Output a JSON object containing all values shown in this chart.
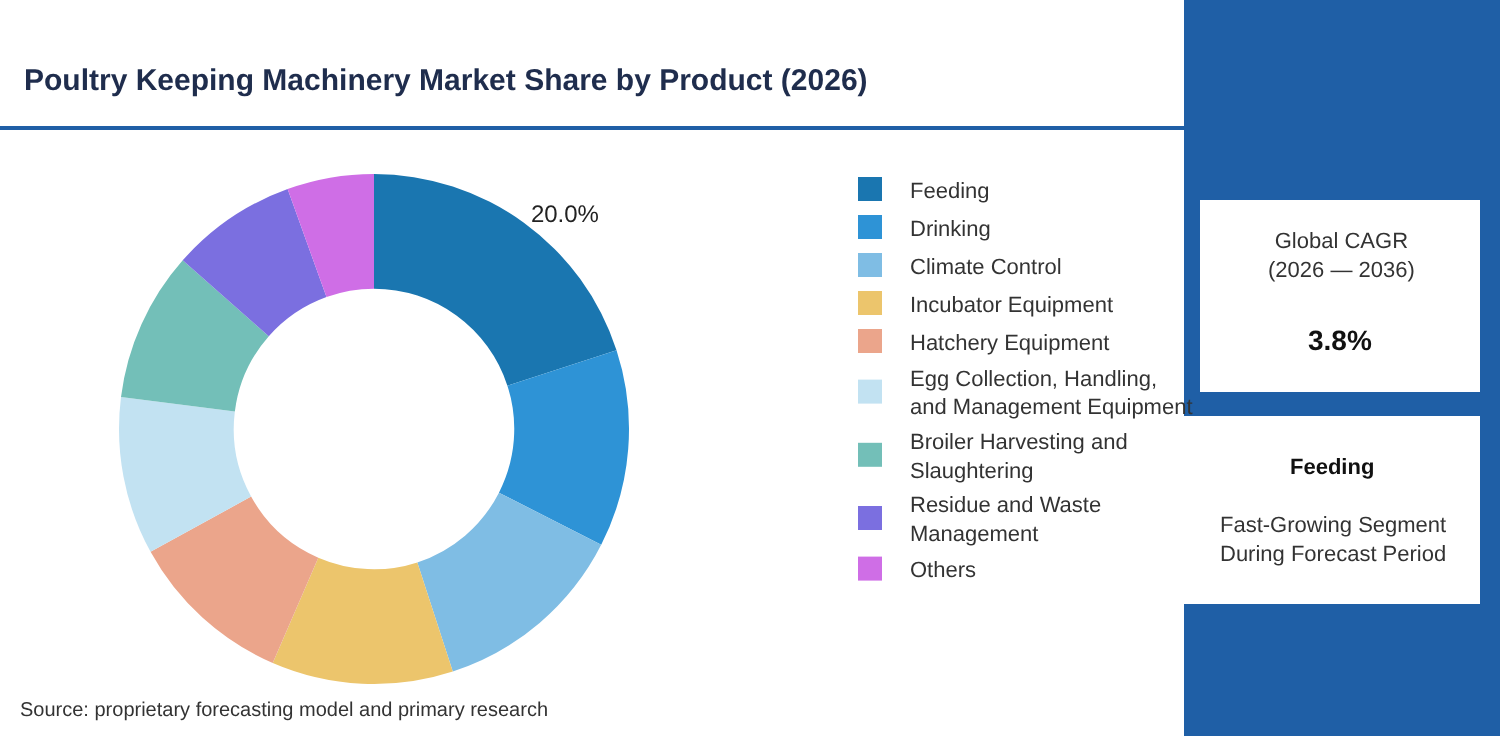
{
  "chart_data": {
    "type": "donut",
    "title": "Poultry Keeping Machinery Market Share by Product (2026)",
    "categories": [
      "Feeding",
      "Drinking",
      "Climate Control",
      "Incubator Equipment",
      "Hatchery Equipment",
      "Egg Collection, Handling, and Management Equipment",
      "Broiler Harvesting and Slaughtering",
      "Residue and Waste Management",
      "Others"
    ],
    "values": [
      20,
      12.5,
      12.5,
      11.5,
      10.5,
      10,
      9.5,
      8,
      5.5
    ],
    "colors": [
      "#1a76b0",
      "#2e93d6",
      "#7fbde4",
      "#ecc56c",
      "#eba58b",
      "#c2e2f2",
      "#73bfb8",
      "#7b6fe0",
      "#cf6ee6"
    ],
    "value_labels": [
      "20.0%",
      null,
      null,
      null,
      null,
      null,
      null,
      null,
      null
    ],
    "legend": "right",
    "annotations": [
      "Global CAGR (2026 — 2036)",
      "3.8%",
      "Feeding",
      "Fast-Growing Segment During Forecast Period",
      "Source: proprietary forecasting model and primary research"
    ]
  }
}
